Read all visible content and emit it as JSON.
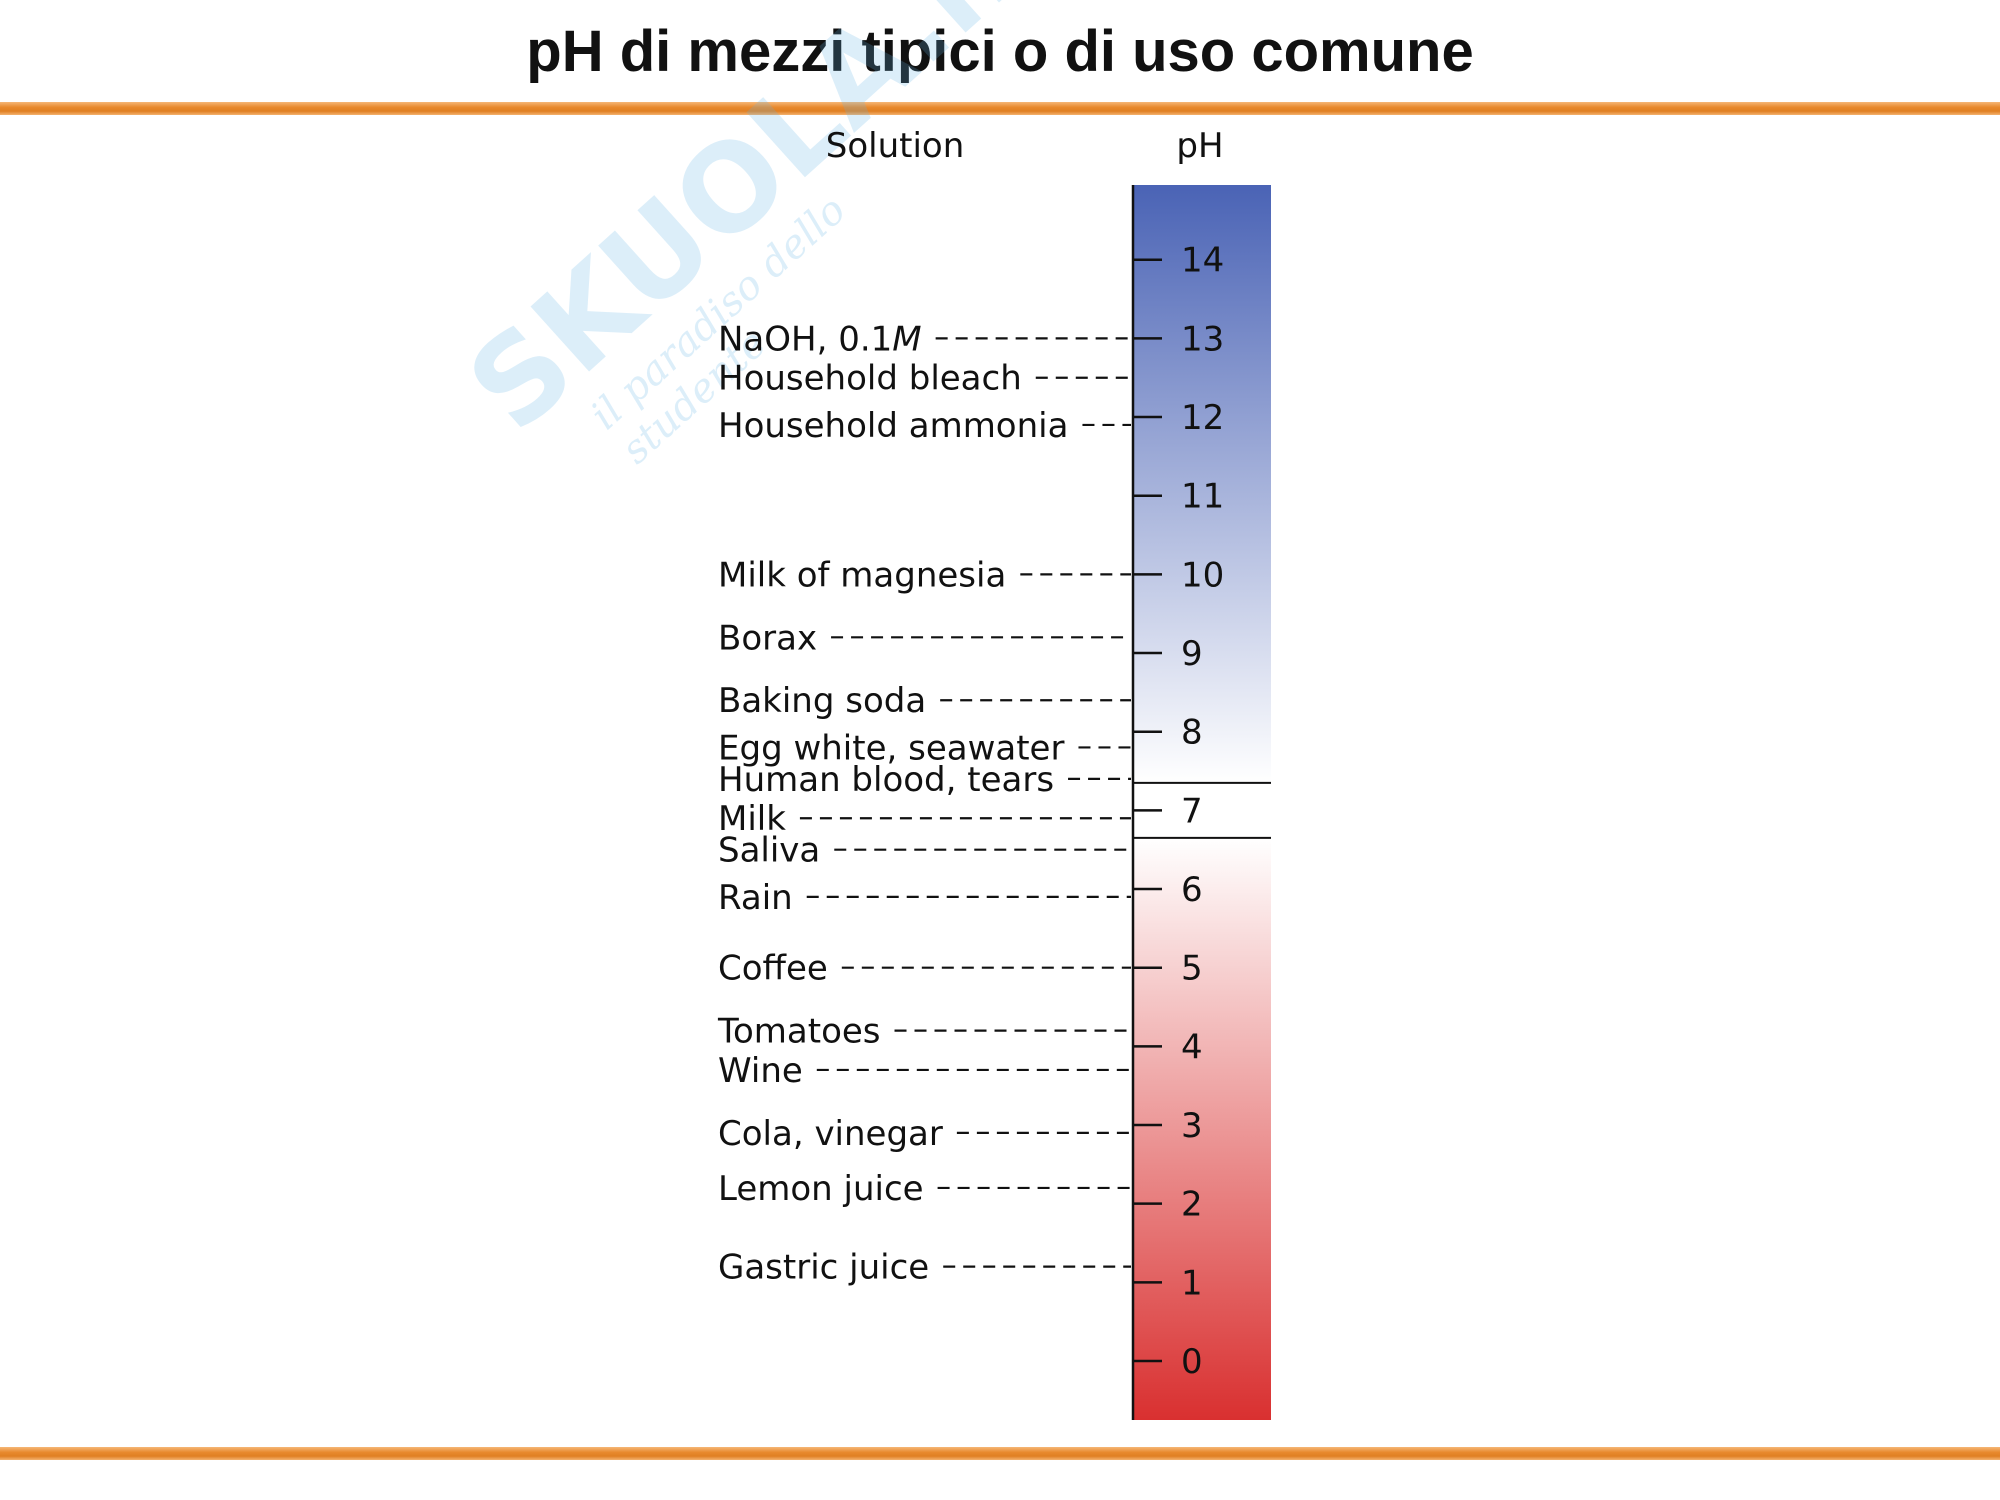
{
  "title": "pH di mezzi tipici o di uso comune",
  "watermark": {
    "brand": "SKUOLA.net",
    "tagline": "il paradiso dello studente"
  },
  "headers": {
    "solution": "Solution",
    "ph": "pH"
  },
  "scale": {
    "min": -0.75,
    "max": 14.95,
    "ticks": [
      14,
      13,
      12,
      11,
      10,
      9,
      8,
      7,
      6,
      5,
      4,
      3,
      2,
      1,
      0
    ],
    "neutral_band": [
      6.65,
      7.35
    ],
    "colors": {
      "basic": "#4a63b5",
      "neutral": "#ffffff",
      "acidic": "#d93030"
    }
  },
  "solutions": [
    {
      "label": "NaOH, 0.1",
      "italic_suffix": "M",
      "ph": 13.0
    },
    {
      "label": "Household bleach",
      "italic_suffix": "",
      "ph": 12.5
    },
    {
      "label": "Household ammonia",
      "italic_suffix": "",
      "ph": 11.9
    },
    {
      "label": "Milk of magnesia",
      "italic_suffix": "",
      "ph": 10.0
    },
    {
      "label": "Borax",
      "italic_suffix": "",
      "ph": 9.2
    },
    {
      "label": "Baking soda",
      "italic_suffix": "",
      "ph": 8.4
    },
    {
      "label": "Egg white, seawater",
      "italic_suffix": "",
      "ph": 7.8
    },
    {
      "label": "Human blood, tears",
      "italic_suffix": "",
      "ph": 7.4
    },
    {
      "label": "Milk",
      "italic_suffix": "",
      "ph": 6.9
    },
    {
      "label": "Saliva",
      "italic_suffix": "",
      "ph": 6.5
    },
    {
      "label": "Rain",
      "italic_suffix": "",
      "ph": 5.9
    },
    {
      "label": "Coffee",
      "italic_suffix": "",
      "ph": 5.0
    },
    {
      "label": "Tomatoes",
      "italic_suffix": "",
      "ph": 4.2
    },
    {
      "label": "Wine",
      "italic_suffix": "",
      "ph": 3.7
    },
    {
      "label": "Cola, vinegar",
      "italic_suffix": "",
      "ph": 2.9
    },
    {
      "label": "Lemon juice",
      "italic_suffix": "",
      "ph": 2.2
    },
    {
      "label": "Gastric juice",
      "italic_suffix": "",
      "ph": 1.2
    }
  ]
}
